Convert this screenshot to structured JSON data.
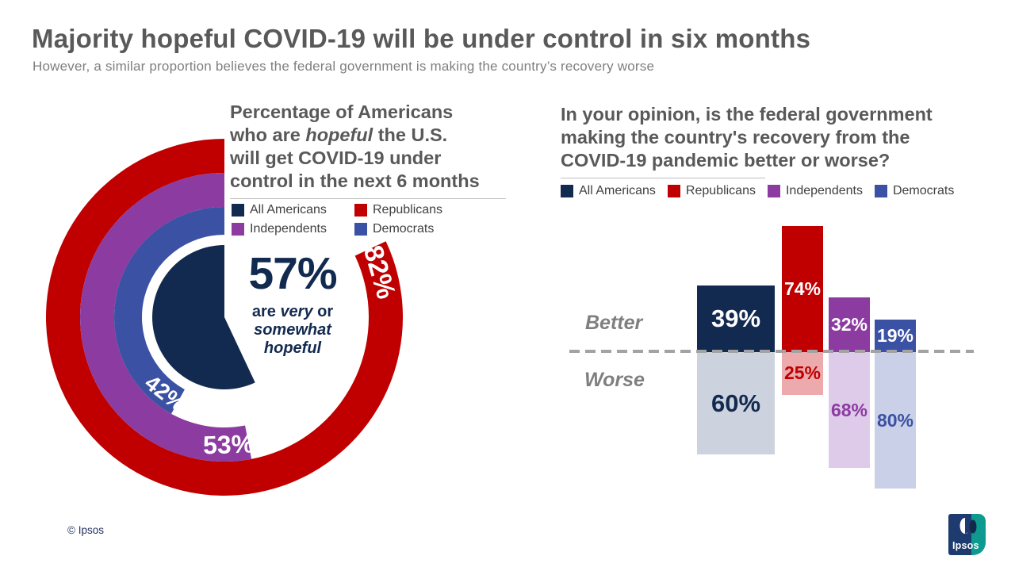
{
  "header": {
    "title": "Majority hopeful COVID-19 will be under control in six months",
    "subtitle": "However, a similar proportion believes the federal government is making the country’s recovery worse"
  },
  "chart_data": [
    {
      "type": "radial_donut",
      "title_l1": "Percentage of Americans",
      "title_l2a": "who are ",
      "title_l2b": "hopeful",
      "title_l2c": " the U.S.",
      "title_l3": "will get COVID-19 under",
      "title_l4": "control in the next 6 months",
      "legend": [
        {
          "label": "All Americans",
          "color": "#132A50"
        },
        {
          "label": "Republicans",
          "color": "#C00000"
        },
        {
          "label": "Independents",
          "color": "#8C3BA0"
        },
        {
          "label": "Democrats",
          "color": "#3B51A3"
        }
      ],
      "rings": [
        {
          "name": "Republicans",
          "value": 82,
          "color": "#C00000"
        },
        {
          "name": "Independents",
          "value": 53,
          "color": "#8C3BA0"
        },
        {
          "name": "Democrats",
          "value": 42,
          "color": "#3B51A3"
        }
      ],
      "center": {
        "name": "All Americans",
        "value": 57,
        "color": "#132A50",
        "value_label": "57%",
        "sub_l1a": "are ",
        "sub_l1b": "very",
        "sub_l1c": " or",
        "sub_l2": "somewhat",
        "sub_l3": "hopeful"
      }
    },
    {
      "type": "diverging_bar",
      "title_l1": "In your opinion, is the federal government",
      "title_l2": "making the country's recovery from the",
      "title_l3": "COVID-19 pandemic better or worse?",
      "legend": [
        {
          "label": "All Americans",
          "color": "#132A50"
        },
        {
          "label": "Republicans",
          "color": "#C00000"
        },
        {
          "label": "Independents",
          "color": "#8C3BA0"
        },
        {
          "label": "Democrats",
          "color": "#3B51A3"
        }
      ],
      "categories": [
        "All Americans",
        "Republicans",
        "Independents",
        "Democrats"
      ],
      "series": [
        {
          "name": "Better",
          "values": [
            39,
            74,
            32,
            19
          ],
          "colors": [
            "#132A50",
            "#C00000",
            "#8C3BA0",
            "#3B51A3"
          ],
          "label_colors": [
            "#FFFFFF",
            "#FFFFFF",
            "#FFFFFF",
            "#FFFFFF"
          ]
        },
        {
          "name": "Worse",
          "values": [
            60,
            25,
            68,
            80
          ],
          "colors": [
            "#CDD3DE",
            "#ECAAAD",
            "#DECBEA",
            "#C9D0E8"
          ],
          "label_colors": [
            "#132A50",
            "#C00000",
            "#8C3BA0",
            "#3B51A3"
          ]
        }
      ],
      "axis": {
        "better_label": "Better",
        "worse_label": "Worse"
      }
    }
  ],
  "footer": {
    "copyright": "© Ipsos",
    "logo_text": "Ipsos"
  }
}
